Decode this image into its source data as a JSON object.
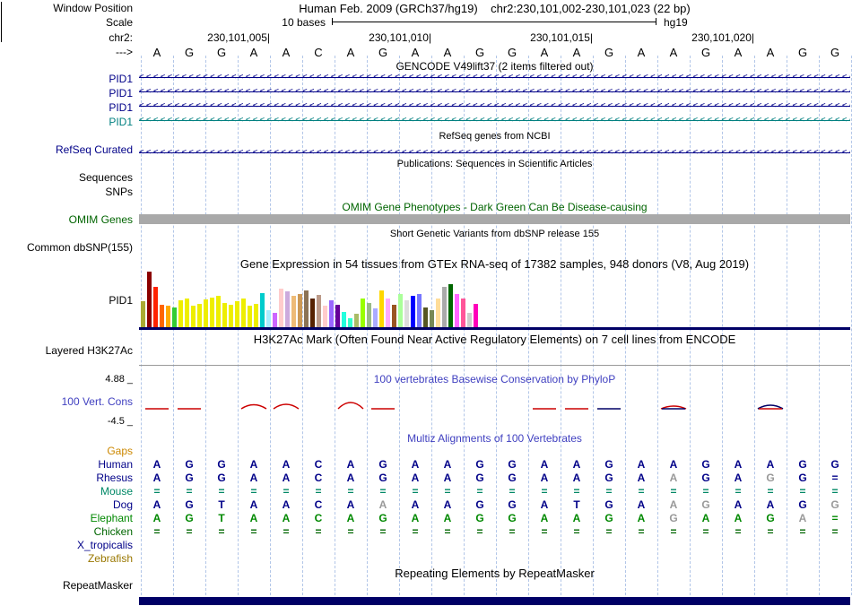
{
  "header": {
    "title": "Human Feb. 2009 (GRCh37/hg19)    chr2:230,101,002-230,101,023 (22 bp)",
    "scale_value": "10 bases",
    "assembly": "hg19",
    "ruler_ticks": [
      "230,101,005|",
      "230,101,010|",
      "230,101,015|",
      "230,101,020|"
    ]
  },
  "left_labels": [
    {
      "text": "Window Position",
      "color": "#000000"
    },
    {
      "text": "Scale",
      "color": "#000000"
    },
    {
      "text": "chr2:",
      "color": "#000000"
    },
    {
      "text": "--->",
      "color": "#000000"
    },
    {
      "text": "PID1",
      "color": "#000088"
    },
    {
      "text": "PID1",
      "color": "#000088"
    },
    {
      "text": "PID1",
      "color": "#000088"
    },
    {
      "text": "PID1",
      "color": "#008080"
    },
    {
      "text": "RefSeq Curated",
      "color": "#000088"
    },
    {
      "text": "Sequences",
      "color": "#000000"
    },
    {
      "text": "SNPs",
      "color": "#000000"
    },
    {
      "text": "OMIM Genes",
      "color": "#006400"
    },
    {
      "text": "Common dbSNP(155)",
      "color": "#000000"
    },
    {
      "text": "PID1",
      "color": "#000000"
    },
    {
      "text": "Layered H3K27Ac",
      "color": "#000000"
    },
    {
      "text": "4.88 _",
      "color": "#000000"
    },
    {
      "text": "100 Vert. Cons",
      "color": "#4040c0"
    },
    {
      "text": "-4.5 _",
      "color": "#000000"
    },
    {
      "text": "RepeatMasker",
      "color": "#000000"
    }
  ],
  "sequence": {
    "bases": "AGGAACAGAAGGAAGAAGAAGG"
  },
  "tracks": {
    "gencode": {
      "title": "GENCODE V49lift37 (2 items filtered out)",
      "items": [
        {
          "label": "PID1",
          "color": "#000088"
        },
        {
          "label": "PID1",
          "color": "#000088"
        },
        {
          "label": "PID1",
          "color": "#000088"
        },
        {
          "label": "PID1",
          "color": "#008080"
        }
      ]
    },
    "refseq": {
      "title": "RefSeq genes from NCBI",
      "color": "#000088"
    },
    "publications": {
      "title": "Publications: Sequences in Scientific Articles"
    },
    "omim": {
      "title": "OMIM Gene Phenotypes - Dark Green Can Be Disease-causing",
      "bar_color": "#a9a9a9"
    },
    "dbsnp": {
      "title": "Short Genetic Variants from dbSNP release 155"
    },
    "gtex": {
      "title": "Gene Expression in 54 tissues from GTEx RNA-seq of 17382 samples, 948 donors (V8, Aug 2019)"
    },
    "h3k27ac": {
      "title": "H3K27Ac Mark (Often Found Near Active Regulatory Elements) on 7 cell lines from ENCODE"
    },
    "conservation": {
      "title": "100 vertebrates Basewise Conservation by PhyloP",
      "max_label": "4.88 _",
      "min_label": "-4.5 _"
    },
    "multiz": {
      "title": "Multiz Alignments of 100 Vertebrates",
      "rows": [
        {
          "name": "Gaps",
          "color": "#cc8800",
          "seq": ""
        },
        {
          "name": "Human",
          "color": "#000088",
          "seq": "AGGAACAGAAGGAAGAAGAAGG"
        },
        {
          "name": "Rhesus",
          "color": "#000088",
          "seq": "AGGAACAGAAGGAAGAaGAgG="
        },
        {
          "name": "Mouse",
          "color": "#008866",
          "seq": "======================"
        },
        {
          "name": "Dog",
          "color": "#000088",
          "seq": "AGTAACAaAAGGATGAagAAGg"
        },
        {
          "name": "Elephant",
          "color": "#008800",
          "seq": "AGTAACAGAAGGAAGAgAAGa="
        },
        {
          "name": "Chicken",
          "color": "#006600",
          "seq": "======================"
        },
        {
          "name": "X_tropicalis",
          "color": "#000088",
          "seq": ""
        },
        {
          "name": "Zebrafish",
          "color": "#997700",
          "seq": ""
        }
      ]
    },
    "repeatmasker": {
      "title": "Repeating Elements by RepeatMasker"
    }
  },
  "chart_data": [
    {
      "type": "bar",
      "title": "Gene Expression in 54 tissues from GTEx RNA-seq of 17382 samples, 948 donors (V8, Aug 2019)",
      "gene": "PID1",
      "ylim": [
        0,
        100
      ],
      "values": [
        46,
        100,
        72,
        40,
        38,
        36,
        48,
        52,
        38,
        42,
        50,
        54,
        56,
        44,
        40,
        46,
        52,
        38,
        42,
        62,
        30,
        26,
        70,
        64,
        56,
        60,
        66,
        52,
        58,
        38,
        48,
        40,
        28,
        16,
        24,
        52,
        44,
        34,
        66,
        52,
        40,
        60,
        48,
        56,
        60,
        36,
        30,
        52,
        72,
        78,
        60,
        52,
        26,
        42
      ],
      "colors": [
        "#aaaa33",
        "#8b0000",
        "#ff2200",
        "#ff6600",
        "#ffaa00",
        "#33cc33",
        "#eeee00",
        "#eeee00",
        "#eeee00",
        "#eeee00",
        "#eeee00",
        "#eeee00",
        "#eeee00",
        "#eeee00",
        "#eeee00",
        "#eeee00",
        "#eeee00",
        "#eeee00",
        "#eeee00",
        "#00cccc",
        "#aaeeff",
        "#cc66ff",
        "#ffcccc",
        "#ccaadd",
        "#eebb77",
        "#cc9955",
        "#8b7355",
        "#552200",
        "#bb9988",
        "#ffcccc",
        "#9966ff",
        "#660099",
        "#22ffdd",
        "#33ffcc",
        "#aabb66",
        "#99ff00",
        "#99bb88",
        "#aaaaff",
        "#ffd700",
        "#ffaaff",
        "#995522",
        "#aaff99",
        "#dddddd",
        "#0000ff",
        "#7777ff",
        "#555522",
        "#778855",
        "#ffdd99",
        "#aaaaaa",
        "#006600",
        "#ff66ff",
        "#ff5599",
        "#cccccc",
        "#ff00bb"
      ]
    },
    {
      "type": "line",
      "title": "100 vertebrates Basewise Conservation by PhyloP",
      "ylim": [
        -4.5,
        4.88
      ],
      "series_colors": {
        "red": "#cc0000",
        "navy": "#000066"
      },
      "marks": [
        {
          "base": 0,
          "shape": "flat",
          "color": "red",
          "h": 2
        },
        {
          "base": 1,
          "shape": "flat",
          "color": "red",
          "h": 2
        },
        {
          "base": 3,
          "shape": "hump",
          "color": "red",
          "h": 9
        },
        {
          "base": 4,
          "shape": "hump",
          "color": "red",
          "h": 10
        },
        {
          "base": 6,
          "shape": "hump",
          "color": "red",
          "h": 14
        },
        {
          "base": 7,
          "shape": "flat",
          "color": "red",
          "h": 2
        },
        {
          "base": 12,
          "shape": "flat",
          "color": "red",
          "h": 2
        },
        {
          "base": 13,
          "shape": "flat",
          "color": "red",
          "h": 2
        },
        {
          "base": 14,
          "shape": "flat",
          "color": "navy",
          "h": 3
        },
        {
          "base": 16,
          "shape": "hump",
          "color": "red",
          "h": 6
        },
        {
          "base": 16,
          "shape": "flat",
          "color": "navy",
          "h": 2
        },
        {
          "base": 19,
          "shape": "hump",
          "color": "navy",
          "h": 8
        },
        {
          "base": 19,
          "shape": "flat",
          "color": "red",
          "h": 2
        }
      ]
    }
  ]
}
